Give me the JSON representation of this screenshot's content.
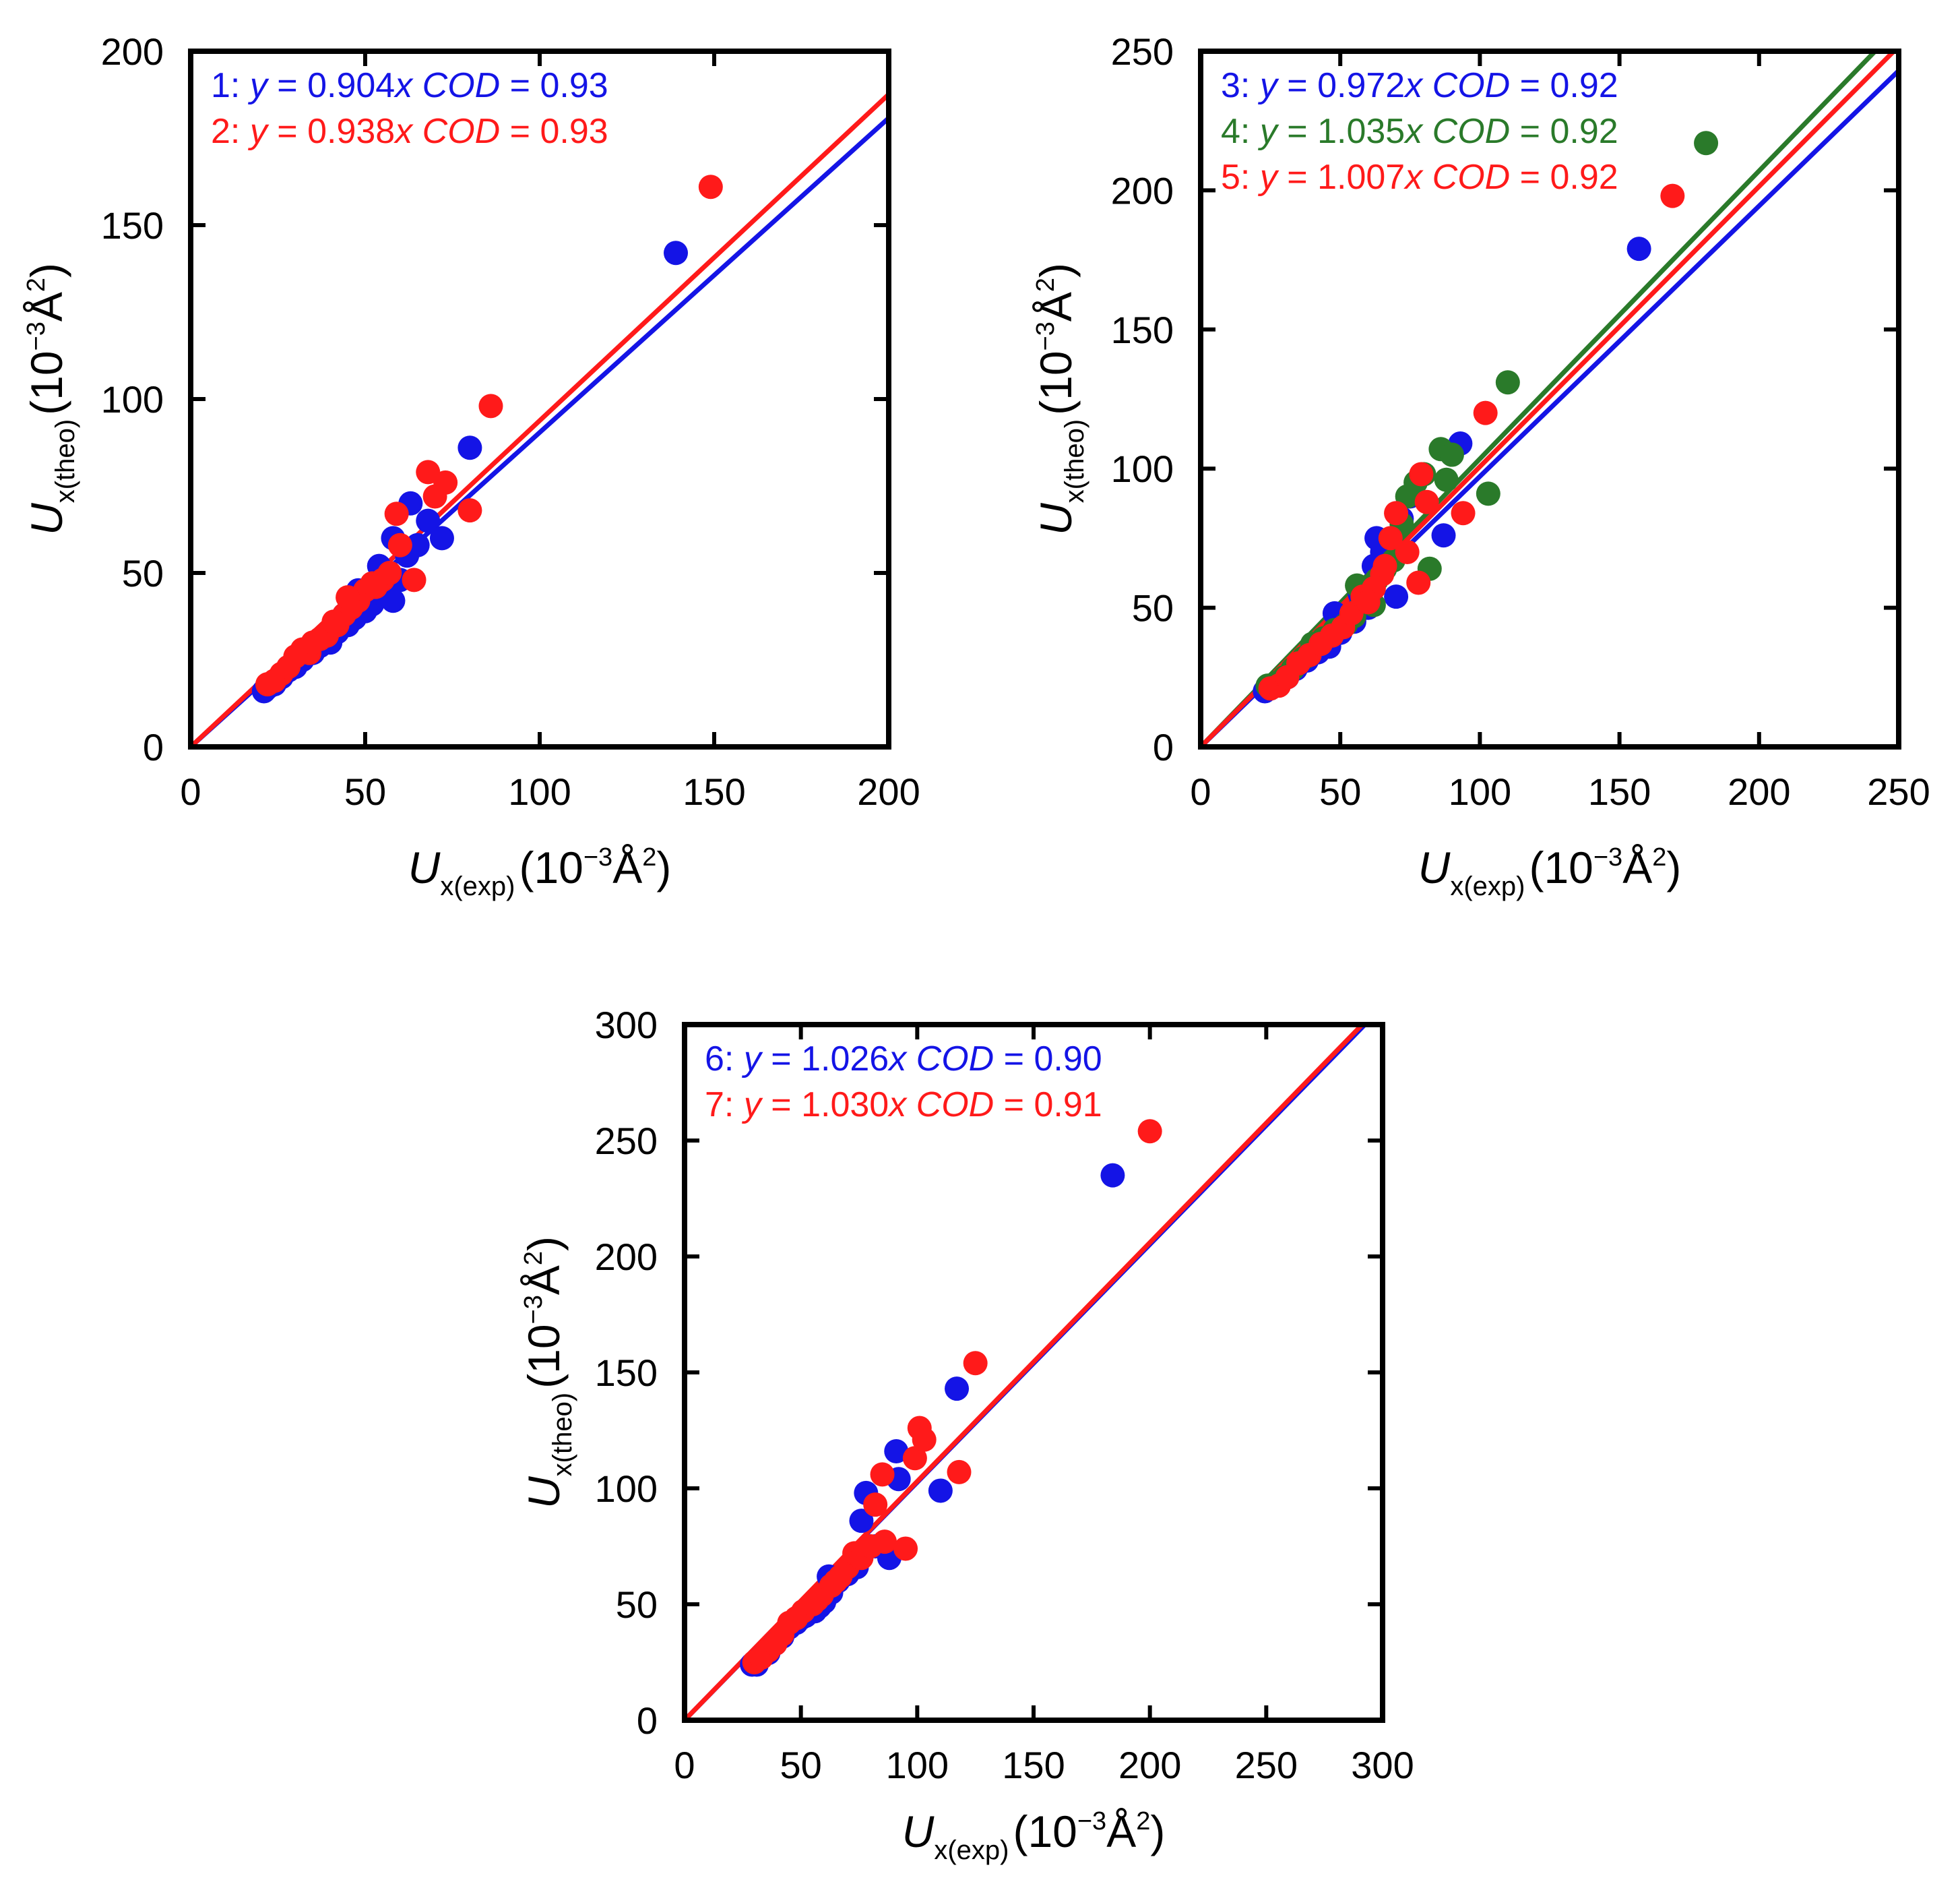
{
  "chart_data": [
    {
      "type": "scatter",
      "panel": "top-left",
      "xlabel": {
        "main": "U",
        "sub": "x(exp)",
        "unit_prefix": "(10",
        "unit_exp": "−3",
        "unit_mid": "Å",
        "unit_sup": "2",
        "unit_suffix": ")"
      },
      "ylabel": {
        "main": "U",
        "sub": "x(theo)",
        "unit_prefix": "(10",
        "unit_exp": "−3",
        "unit_mid": "Å",
        "unit_sup": "2",
        "unit_suffix": ")"
      },
      "xlim": [
        0,
        200
      ],
      "ylim": [
        0,
        200
      ],
      "xticks": [
        "0",
        "50",
        "100",
        "150",
        "200"
      ],
      "yticks": [
        "0",
        "50",
        "100",
        "150",
        "200"
      ],
      "grid": false,
      "annotations": [
        {
          "id": "1",
          "color": "#1414e6",
          "num": "1:",
          "y": "y",
          "eq": "= 0.904",
          "x": "x",
          "cod": "COD",
          "val": "= 0.93"
        },
        {
          "id": "2",
          "color": "#ff1a1a",
          "num": "2:",
          "y": "y",
          "eq": "= 0.938",
          "x": "x",
          "cod": "COD",
          "val": "= 0.93"
        }
      ],
      "series": [
        {
          "name": "1",
          "color": "#1414e6",
          "slope": 0.904,
          "points": [
            [
              21,
              16
            ],
            [
              22,
              17
            ],
            [
              24,
              18
            ],
            [
              26,
              20
            ],
            [
              28,
              22
            ],
            [
              30,
              23
            ],
            [
              32,
              25
            ],
            [
              35,
              27
            ],
            [
              37,
              29
            ],
            [
              40,
              30
            ],
            [
              42,
              33
            ],
            [
              45,
              35
            ],
            [
              47,
              37
            ],
            [
              50,
              39
            ],
            [
              52,
              41
            ],
            [
              55,
              44
            ],
            [
              58,
              42
            ],
            [
              60,
              48
            ],
            [
              62,
              55
            ],
            [
              65,
              58
            ],
            [
              68,
              65
            ],
            [
              72,
              60
            ],
            [
              63,
              70
            ],
            [
              58,
              60
            ],
            [
              80,
              86
            ],
            [
              139,
              142
            ],
            [
              54,
              52
            ],
            [
              48,
              45
            ],
            [
              44,
              38
            ],
            [
              38,
              31
            ]
          ]
        },
        {
          "name": "2",
          "color": "#ff1a1a",
          "slope": 0.938,
          "points": [
            [
              22,
              18
            ],
            [
              24,
              19
            ],
            [
              26,
              21
            ],
            [
              28,
              23
            ],
            [
              30,
              26
            ],
            [
              32,
              28
            ],
            [
              34,
              27
            ],
            [
              37,
              31
            ],
            [
              39,
              32
            ],
            [
              42,
              35
            ],
            [
              44,
              38
            ],
            [
              46,
              40
            ],
            [
              48,
              42
            ],
            [
              50,
              45
            ],
            [
              52,
              47
            ],
            [
              55,
              48
            ],
            [
              57,
              50
            ],
            [
              60,
              58
            ],
            [
              59,
              67
            ],
            [
              64,
              48
            ],
            [
              68,
              79
            ],
            [
              70,
              72
            ],
            [
              73,
              76
            ],
            [
              80,
              68
            ],
            [
              86,
              98
            ],
            [
              149,
              161
            ],
            [
              45,
              43
            ],
            [
              41,
              36
            ],
            [
              35,
              30
            ],
            [
              53,
              46
            ]
          ]
        }
      ]
    },
    {
      "type": "scatter",
      "panel": "top-right",
      "xlabel": {
        "main": "U",
        "sub": "x(exp)",
        "unit_prefix": "(10",
        "unit_exp": "−3",
        "unit_mid": "Å",
        "unit_sup": "2",
        "unit_suffix": ")"
      },
      "ylabel": {
        "main": "U",
        "sub": "x(theo)",
        "unit_prefix": "(10",
        "unit_exp": "−3",
        "unit_mid": "Å",
        "unit_sup": "2",
        "unit_suffix": ")"
      },
      "xlim": [
        0,
        250
      ],
      "ylim": [
        0,
        250
      ],
      "xticks": [
        "0",
        "50",
        "100",
        "150",
        "200",
        "250"
      ],
      "yticks": [
        "0",
        "50",
        "100",
        "150",
        "200",
        "250"
      ],
      "grid": false,
      "annotations": [
        {
          "id": "3",
          "color": "#1414e6",
          "num": "3:",
          "y": "y",
          "eq": "= 0.972",
          "x": "x",
          "cod": "COD",
          "val": "= 0.92"
        },
        {
          "id": "4",
          "color": "#2a7a2a",
          "num": "4:",
          "y": "y",
          "eq": "= 1.035",
          "x": "x",
          "cod": "COD",
          "val": "= 0.92"
        },
        {
          "id": "5",
          "color": "#ff1a1a",
          "num": "5:",
          "y": "y",
          "eq": "= 1.007",
          "x": "x",
          "cod": "COD",
          "val": "= 0.92"
        }
      ],
      "series": [
        {
          "name": "3",
          "color": "#1414e6",
          "slope": 0.972,
          "points": [
            [
              23,
              20
            ],
            [
              25,
              21
            ],
            [
              28,
              23
            ],
            [
              31,
              25
            ],
            [
              34,
              28
            ],
            [
              38,
              31
            ],
            [
              42,
              34
            ],
            [
              46,
              36
            ],
            [
              50,
              41
            ],
            [
              55,
              45
            ],
            [
              60,
              50
            ],
            [
              62,
              65
            ],
            [
              63,
              75
            ],
            [
              65,
              70
            ],
            [
              70,
              54
            ],
            [
              72,
              82
            ],
            [
              75,
              90
            ],
            [
              87,
              76
            ],
            [
              93,
              109
            ],
            [
              157,
              179
            ],
            [
              48,
              48
            ],
            [
              57,
              55
            ]
          ]
        },
        {
          "name": "4",
          "color": "#2a7a2a",
          "slope": 1.035,
          "points": [
            [
              24,
              22
            ],
            [
              27,
              23
            ],
            [
              30,
              25
            ],
            [
              33,
              28
            ],
            [
              37,
              32
            ],
            [
              40,
              37
            ],
            [
              44,
              39
            ],
            [
              48,
              42
            ],
            [
              52,
              44
            ],
            [
              55,
              47
            ],
            [
              58,
              52
            ],
            [
              60,
              56
            ],
            [
              63,
              60
            ],
            [
              66,
              64
            ],
            [
              69,
              67
            ],
            [
              72,
              80
            ],
            [
              74,
              90
            ],
            [
              77,
              95
            ],
            [
              80,
              98
            ],
            [
              82,
              64
            ],
            [
              86,
              107
            ],
            [
              88,
              96
            ],
            [
              90,
              105
            ],
            [
              103,
              91
            ],
            [
              110,
              131
            ],
            [
              181,
              217
            ],
            [
              56,
              58
            ],
            [
              62,
              51
            ]
          ]
        },
        {
          "name": "5",
          "color": "#ff1a1a",
          "slope": 1.007,
          "points": [
            [
              25,
              21
            ],
            [
              28,
              22
            ],
            [
              31,
              25
            ],
            [
              35,
              30
            ],
            [
              39,
              33
            ],
            [
              43,
              37
            ],
            [
              47,
              40
            ],
            [
              51,
              43
            ],
            [
              54,
              48
            ],
            [
              58,
              54
            ],
            [
              62,
              57
            ],
            [
              65,
              62
            ],
            [
              68,
              75
            ],
            [
              70,
              84
            ],
            [
              74,
              70
            ],
            [
              78,
              59
            ],
            [
              79,
              98
            ],
            [
              81,
              88
            ],
            [
              94,
              84
            ],
            [
              102,
              120
            ],
            [
              169,
              198
            ],
            [
              60,
              52
            ],
            [
              66,
              65
            ]
          ]
        }
      ]
    },
    {
      "type": "scatter",
      "panel": "bottom",
      "xlabel": {
        "main": "U",
        "sub": "x(exp)",
        "unit_prefix": "(10",
        "unit_exp": "−3",
        "unit_mid": "Å",
        "unit_sup": "2",
        "unit_suffix": ")"
      },
      "ylabel": {
        "main": "U",
        "sub": "x(theo)",
        "unit_prefix": "(10",
        "unit_exp": "−3",
        "unit_mid": "Å",
        "unit_sup": "2",
        "unit_suffix": ")"
      },
      "xlim": [
        0,
        300
      ],
      "ylim": [
        0,
        300
      ],
      "xticks": [
        "0",
        "50",
        "100",
        "150",
        "200",
        "250",
        "300"
      ],
      "yticks": [
        "0",
        "50",
        "100",
        "150",
        "200",
        "250",
        "300"
      ],
      "grid": false,
      "annotations": [
        {
          "id": "6",
          "color": "#1414e6",
          "num": "6:",
          "y": "y",
          "eq": "= 1.026",
          "x": "x",
          "cod": "COD",
          "val": "= 0.90"
        },
        {
          "id": "7",
          "color": "#ff1a1a",
          "num": "7:",
          "y": "y",
          "eq": "= 1.030",
          "x": "x",
          "cod": "COD",
          "val": "= 0.91"
        }
      ],
      "series": [
        {
          "name": "6",
          "color": "#1414e6",
          "slope": 1.026,
          "points": [
            [
              29,
              24
            ],
            [
              31,
              24
            ],
            [
              33,
              27
            ],
            [
              36,
              29
            ],
            [
              39,
              33
            ],
            [
              42,
              36
            ],
            [
              45,
              40
            ],
            [
              48,
              42
            ],
            [
              52,
              45
            ],
            [
              56,
              47
            ],
            [
              60,
              51
            ],
            [
              63,
              55
            ],
            [
              66,
              60
            ],
            [
              70,
              63
            ],
            [
              74,
              66
            ],
            [
              76,
              86
            ],
            [
              78,
              98
            ],
            [
              82,
              75
            ],
            [
              88,
              70
            ],
            [
              92,
              104
            ],
            [
              91,
              116
            ],
            [
              110,
              99
            ],
            [
              117,
              143
            ],
            [
              184,
              235
            ],
            [
              50,
              44
            ],
            [
              58,
              49
            ],
            [
              62,
              62
            ]
          ]
        },
        {
          "name": "7",
          "color": "#ff1a1a",
          "slope": 1.03,
          "points": [
            [
              30,
              25
            ],
            [
              33,
              27
            ],
            [
              36,
              30
            ],
            [
              39,
              33
            ],
            [
              42,
              37
            ],
            [
              45,
              42
            ],
            [
              48,
              44
            ],
            [
              51,
              47
            ],
            [
              55,
              50
            ],
            [
              59,
              54
            ],
            [
              63,
              58
            ],
            [
              67,
              62
            ],
            [
              70,
              66
            ],
            [
              73,
              72
            ],
            [
              76,
              70
            ],
            [
              80,
              75
            ],
            [
              82,
              93
            ],
            [
              85,
              106
            ],
            [
              86,
              77
            ],
            [
              95,
              74
            ],
            [
              99,
              113
            ],
            [
              101,
              126
            ],
            [
              103,
              121
            ],
            [
              118,
              107
            ],
            [
              125,
              154
            ],
            [
              200,
              254
            ],
            [
              57,
              52
            ],
            [
              65,
              60
            ]
          ]
        }
      ]
    }
  ]
}
